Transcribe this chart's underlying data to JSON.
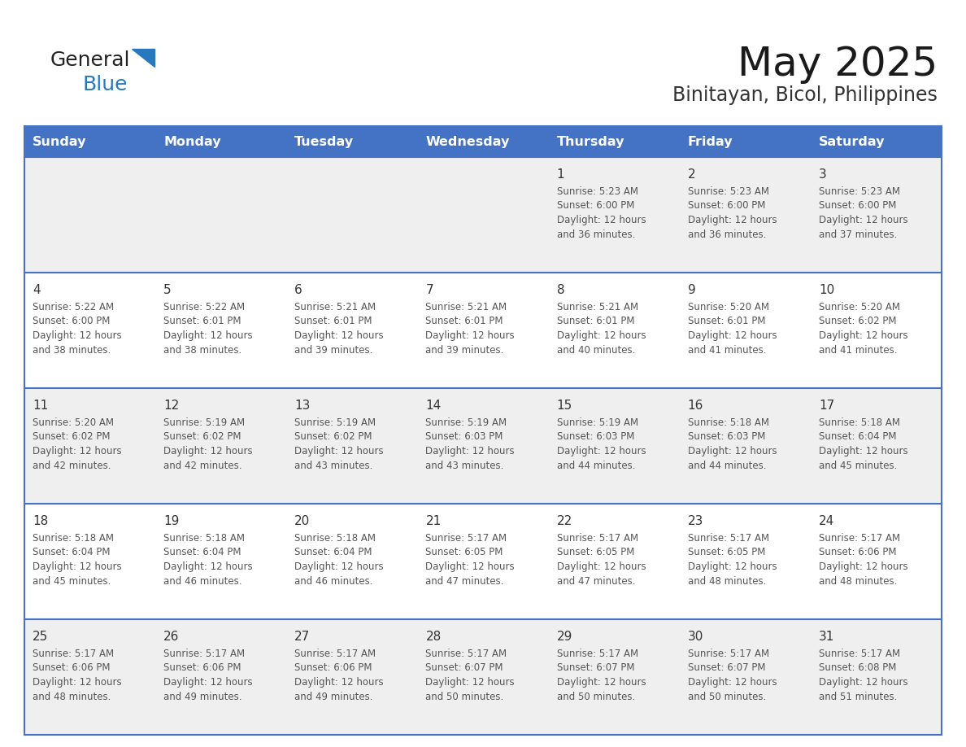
{
  "title": "May 2025",
  "subtitle": "Binitayan, Bicol, Philippines",
  "header_color": "#4472C4",
  "header_text_color": "#FFFFFF",
  "day_names": [
    "Sunday",
    "Monday",
    "Tuesday",
    "Wednesday",
    "Thursday",
    "Friday",
    "Saturday"
  ],
  "background_color": "#FFFFFF",
  "cell_bg_even": "#EFEFEF",
  "cell_bg_odd": "#FFFFFF",
  "grid_color": "#4472C4",
  "text_color": "#333333",
  "logo_black": "#222222",
  "logo_blue": "#2878BE",
  "days": [
    {
      "day": 1,
      "col": 4,
      "row": 0,
      "sunrise": "5:23 AM",
      "sunset": "6:00 PM",
      "daylight": "12 hours and 36 minutes."
    },
    {
      "day": 2,
      "col": 5,
      "row": 0,
      "sunrise": "5:23 AM",
      "sunset": "6:00 PM",
      "daylight": "12 hours and 36 minutes."
    },
    {
      "day": 3,
      "col": 6,
      "row": 0,
      "sunrise": "5:23 AM",
      "sunset": "6:00 PM",
      "daylight": "12 hours and 37 minutes."
    },
    {
      "day": 4,
      "col": 0,
      "row": 1,
      "sunrise": "5:22 AM",
      "sunset": "6:00 PM",
      "daylight": "12 hours and 38 minutes."
    },
    {
      "day": 5,
      "col": 1,
      "row": 1,
      "sunrise": "5:22 AM",
      "sunset": "6:01 PM",
      "daylight": "12 hours and 38 minutes."
    },
    {
      "day": 6,
      "col": 2,
      "row": 1,
      "sunrise": "5:21 AM",
      "sunset": "6:01 PM",
      "daylight": "12 hours and 39 minutes."
    },
    {
      "day": 7,
      "col": 3,
      "row": 1,
      "sunrise": "5:21 AM",
      "sunset": "6:01 PM",
      "daylight": "12 hours and 39 minutes."
    },
    {
      "day": 8,
      "col": 4,
      "row": 1,
      "sunrise": "5:21 AM",
      "sunset": "6:01 PM",
      "daylight": "12 hours and 40 minutes."
    },
    {
      "day": 9,
      "col": 5,
      "row": 1,
      "sunrise": "5:20 AM",
      "sunset": "6:01 PM",
      "daylight": "12 hours and 41 minutes."
    },
    {
      "day": 10,
      "col": 6,
      "row": 1,
      "sunrise": "5:20 AM",
      "sunset": "6:02 PM",
      "daylight": "12 hours and 41 minutes."
    },
    {
      "day": 11,
      "col": 0,
      "row": 2,
      "sunrise": "5:20 AM",
      "sunset": "6:02 PM",
      "daylight": "12 hours and 42 minutes."
    },
    {
      "day": 12,
      "col": 1,
      "row": 2,
      "sunrise": "5:19 AM",
      "sunset": "6:02 PM",
      "daylight": "12 hours and 42 minutes."
    },
    {
      "day": 13,
      "col": 2,
      "row": 2,
      "sunrise": "5:19 AM",
      "sunset": "6:02 PM",
      "daylight": "12 hours and 43 minutes."
    },
    {
      "day": 14,
      "col": 3,
      "row": 2,
      "sunrise": "5:19 AM",
      "sunset": "6:03 PM",
      "daylight": "12 hours and 43 minutes."
    },
    {
      "day": 15,
      "col": 4,
      "row": 2,
      "sunrise": "5:19 AM",
      "sunset": "6:03 PM",
      "daylight": "12 hours and 44 minutes."
    },
    {
      "day": 16,
      "col": 5,
      "row": 2,
      "sunrise": "5:18 AM",
      "sunset": "6:03 PM",
      "daylight": "12 hours and 44 minutes."
    },
    {
      "day": 17,
      "col": 6,
      "row": 2,
      "sunrise": "5:18 AM",
      "sunset": "6:04 PM",
      "daylight": "12 hours and 45 minutes."
    },
    {
      "day": 18,
      "col": 0,
      "row": 3,
      "sunrise": "5:18 AM",
      "sunset": "6:04 PM",
      "daylight": "12 hours and 45 minutes."
    },
    {
      "day": 19,
      "col": 1,
      "row": 3,
      "sunrise": "5:18 AM",
      "sunset": "6:04 PM",
      "daylight": "12 hours and 46 minutes."
    },
    {
      "day": 20,
      "col": 2,
      "row": 3,
      "sunrise": "5:18 AM",
      "sunset": "6:04 PM",
      "daylight": "12 hours and 46 minutes."
    },
    {
      "day": 21,
      "col": 3,
      "row": 3,
      "sunrise": "5:17 AM",
      "sunset": "6:05 PM",
      "daylight": "12 hours and 47 minutes."
    },
    {
      "day": 22,
      "col": 4,
      "row": 3,
      "sunrise": "5:17 AM",
      "sunset": "6:05 PM",
      "daylight": "12 hours and 47 minutes."
    },
    {
      "day": 23,
      "col": 5,
      "row": 3,
      "sunrise": "5:17 AM",
      "sunset": "6:05 PM",
      "daylight": "12 hours and 48 minutes."
    },
    {
      "day": 24,
      "col": 6,
      "row": 3,
      "sunrise": "5:17 AM",
      "sunset": "6:06 PM",
      "daylight": "12 hours and 48 minutes."
    },
    {
      "day": 25,
      "col": 0,
      "row": 4,
      "sunrise": "5:17 AM",
      "sunset": "6:06 PM",
      "daylight": "12 hours and 48 minutes."
    },
    {
      "day": 26,
      "col": 1,
      "row": 4,
      "sunrise": "5:17 AM",
      "sunset": "6:06 PM",
      "daylight": "12 hours and 49 minutes."
    },
    {
      "day": 27,
      "col": 2,
      "row": 4,
      "sunrise": "5:17 AM",
      "sunset": "6:06 PM",
      "daylight": "12 hours and 49 minutes."
    },
    {
      "day": 28,
      "col": 3,
      "row": 4,
      "sunrise": "5:17 AM",
      "sunset": "6:07 PM",
      "daylight": "12 hours and 50 minutes."
    },
    {
      "day": 29,
      "col": 4,
      "row": 4,
      "sunrise": "5:17 AM",
      "sunset": "6:07 PM",
      "daylight": "12 hours and 50 minutes."
    },
    {
      "day": 30,
      "col": 5,
      "row": 4,
      "sunrise": "5:17 AM",
      "sunset": "6:07 PM",
      "daylight": "12 hours and 50 minutes."
    },
    {
      "day": 31,
      "col": 6,
      "row": 4,
      "sunrise": "5:17 AM",
      "sunset": "6:08 PM",
      "daylight": "12 hours and 51 minutes."
    }
  ]
}
